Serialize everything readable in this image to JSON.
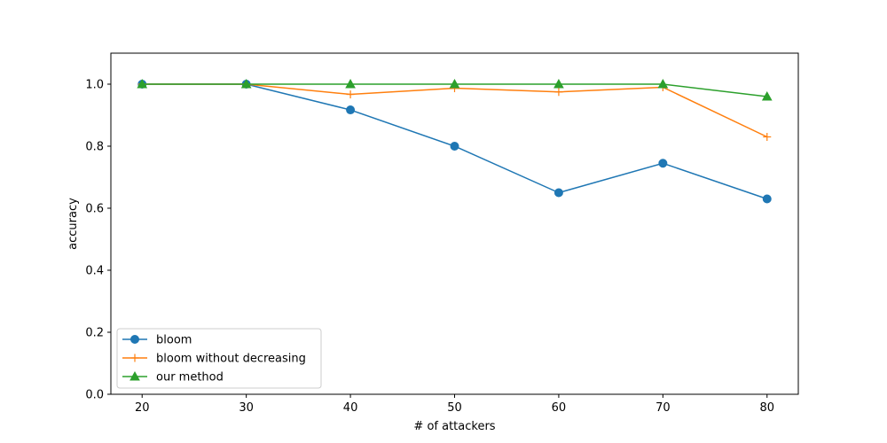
{
  "chart_data": {
    "type": "line",
    "title": "",
    "xlabel": "# of attackers",
    "ylabel": "accuracy",
    "x": [
      20,
      30,
      40,
      50,
      60,
      70,
      80
    ],
    "xticks": [
      "20",
      "30",
      "40",
      "50",
      "60",
      "70",
      "80"
    ],
    "yticks": [
      "0.0",
      "0.2",
      "0.4",
      "0.6",
      "0.8",
      "1.0"
    ],
    "xlim": [
      17,
      83
    ],
    "ylim": [
      0,
      1.1
    ],
    "grid": false,
    "legend_position": "lower-left",
    "series": [
      {
        "name": "bloom",
        "color": "#1f77b4",
        "marker": "circle",
        "values": [
          1.0,
          1.0,
          0.917,
          0.8,
          0.65,
          0.745,
          0.63
        ]
      },
      {
        "name": "bloom without decreasing",
        "color": "#ff7f0e",
        "marker": "plus",
        "values": [
          1.0,
          1.0,
          0.967,
          0.987,
          0.975,
          0.99,
          0.83
        ]
      },
      {
        "name": "our method",
        "color": "#2ca02c",
        "marker": "triangle",
        "values": [
          1.0,
          1.0,
          1.0,
          1.0,
          1.0,
          1.0,
          0.96
        ]
      }
    ]
  }
}
